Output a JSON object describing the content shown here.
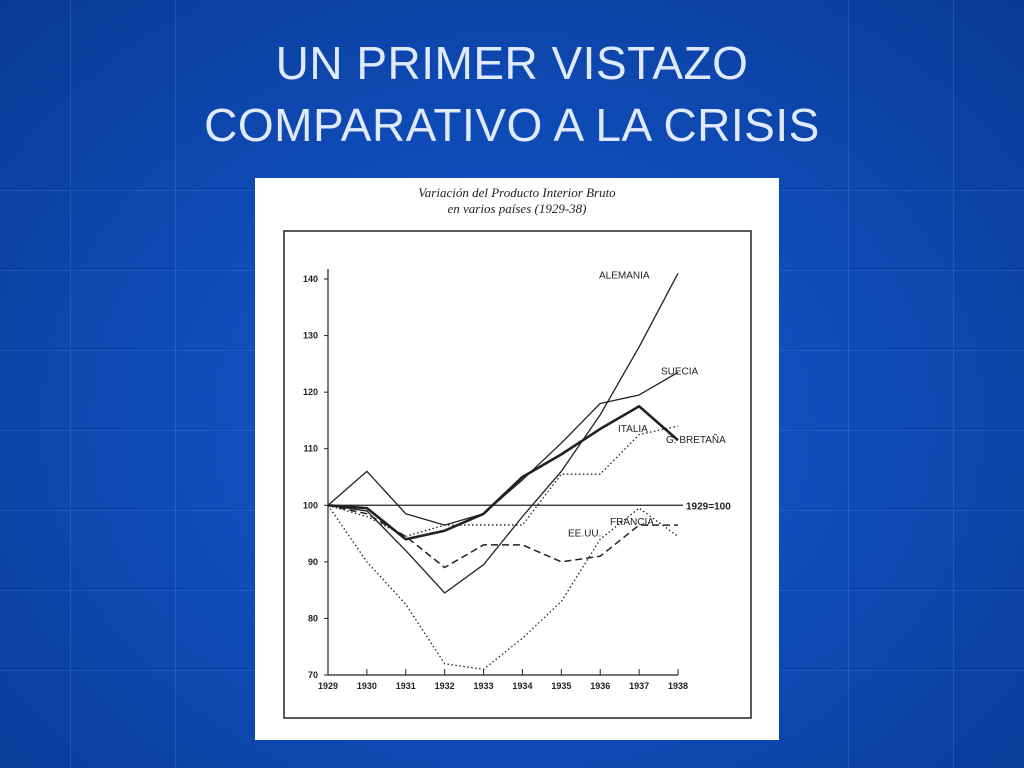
{
  "slide": {
    "title_line1": "UN PRIMER VISTAZO",
    "title_line2": "COMPARATIVO A LA CRISIS"
  },
  "colors": {
    "background": "#0f4cb8",
    "title": "#dfe9ff",
    "line": "#222222"
  },
  "chart_data": {
    "type": "line",
    "title_line1": "Variación del Producto Interior Bruto",
    "title_line2": "en varios países (1929-38)",
    "x": [
      1929,
      1930,
      1931,
      1932,
      1933,
      1934,
      1935,
      1936,
      1937,
      1938
    ],
    "x_tick_labels": [
      "1929",
      "1930",
      "1931",
      "1932",
      "1933",
      "1934",
      "1935",
      "1936",
      "1937",
      "1938"
    ],
    "y_ticks": [
      70,
      80,
      90,
      100,
      110,
      120,
      130,
      140
    ],
    "y_tick_labels": [
      "70",
      "80",
      "90",
      "100",
      "110",
      "120",
      "130",
      "140"
    ],
    "ylim": [
      70,
      140
    ],
    "grid": false,
    "reference": {
      "label": "1929=100",
      "value": 100
    },
    "series": [
      {
        "name": "ALEMANIA",
        "style": "solid",
        "values": [
          100,
          99,
          92,
          84.5,
          89.5,
          98,
          106,
          116,
          128,
          141
        ]
      },
      {
        "name": "SUECIA",
        "style": "solid",
        "values": [
          100,
          106,
          98.5,
          96.5,
          98.5,
          104.5,
          111,
          118,
          119.5,
          123.5
        ]
      },
      {
        "name": "G. BRETAÑA",
        "style": "bold",
        "values": [
          100,
          99.5,
          94,
          95.5,
          98.5,
          105,
          109,
          113.5,
          117.5,
          111.5
        ]
      },
      {
        "name": "ITALIA",
        "style": "dotted",
        "values": [
          100,
          98,
          94.5,
          96.5,
          96.5,
          96.5,
          105.5,
          105.5,
          112.5,
          114
        ]
      },
      {
        "name": "FRANCIA",
        "style": "dashed",
        "values": [
          100,
          98.5,
          94.5,
          89,
          93,
          93,
          90,
          91,
          96.5,
          96.5
        ]
      },
      {
        "name": "EE.UU.",
        "style": "dotted",
        "values": [
          100,
          90,
          82.5,
          72,
          71,
          76.5,
          83,
          94,
          99.5,
          94.5
        ]
      }
    ]
  }
}
